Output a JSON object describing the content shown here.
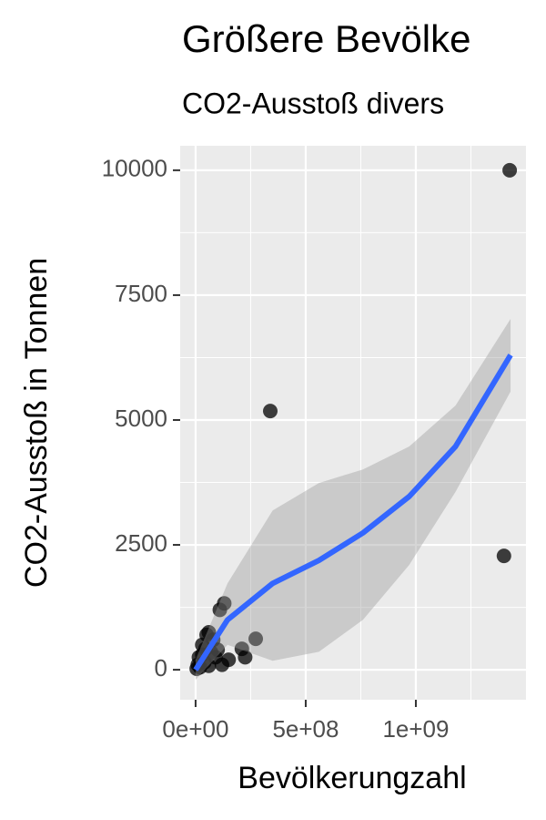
{
  "chart_data": {
    "type": "scatter",
    "title": "Größere Bevölke",
    "subtitle": "CO2-Ausstoß divers",
    "x_label": "Bevölkerungzahl",
    "y_label": "CO2-Ausstoß in Tonnen",
    "xlim": [
      -70000000,
      1500000000
    ],
    "ylim": [
      -600,
      10490
    ],
    "xticks": [
      {
        "value": 0,
        "label": "0e+00"
      },
      {
        "value": 500000000,
        "label": "5e+08"
      },
      {
        "value": 1000000000,
        "label": "1e+09"
      }
    ],
    "yticks": [
      0,
      2500,
      5000,
      7500,
      10000
    ],
    "grid": true,
    "points": {
      "color": "#000000",
      "x": [
        1426000000,
        339000000,
        1400000000,
        273000000,
        130000000,
        110000000,
        210000000,
        225000000,
        100000000,
        50000000,
        60000000,
        80000000,
        30000000,
        10000000,
        20000000,
        5000000,
        40000000,
        60000000,
        150000000,
        120000000,
        90000000,
        70000000,
        30000000,
        15000000,
        45000000
      ],
      "values": [
        10000,
        5180,
        2280,
        620,
        1330,
        1200,
        420,
        250,
        400,
        700,
        750,
        600,
        300,
        100,
        50,
        20,
        150,
        80,
        200,
        100,
        250,
        350,
        500,
        250,
        420
      ]
    },
    "smooth": {
      "color": "#3366ff",
      "band_color": "#999999",
      "x": [
        0,
        145000000,
        350000000,
        560000000,
        760000000,
        970000000,
        1180000000,
        1430000000
      ],
      "values": [
        0,
        1000,
        1730,
        2190,
        2740,
        3470,
        4470,
        6300
      ],
      "lower": [
        -200,
        500,
        180,
        360,
        1000,
        2100,
        3560,
        5570
      ],
      "upper": [
        200,
        1730,
        3190,
        3740,
        4010,
        4470,
        5290,
        7025
      ]
    }
  }
}
